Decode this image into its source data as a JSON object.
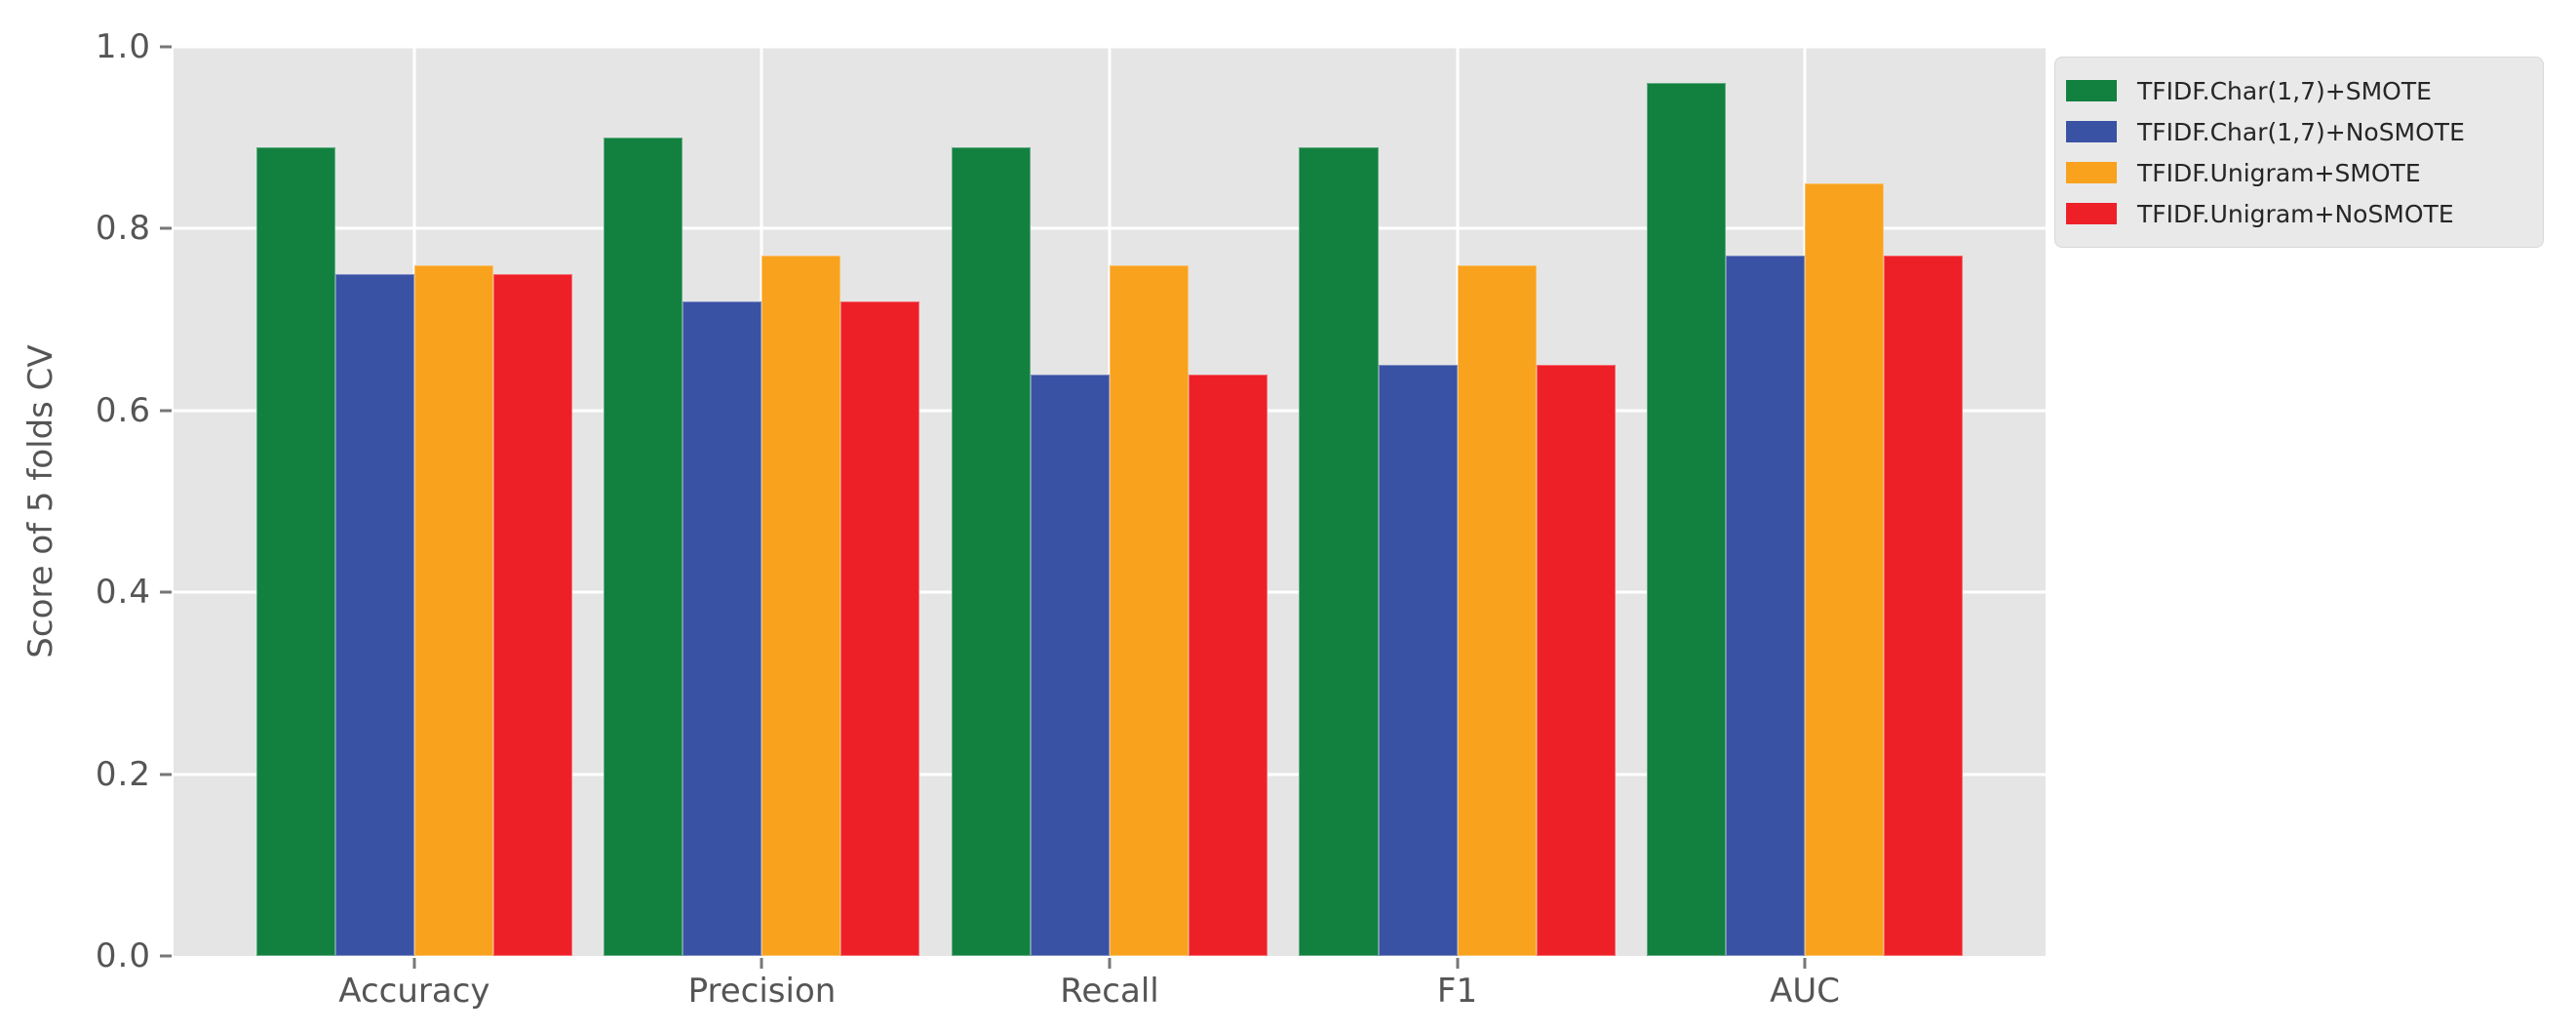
{
  "figure": {
    "background_color": "#ffffff",
    "plot_background_color": "#e5e5e5",
    "gridline_color": "#ffffff",
    "tick_text_color": "#555555",
    "legend_text_color": "#262626"
  },
  "chart_data": {
    "type": "bar",
    "title": "",
    "xlabel": "",
    "ylabel": "Score of 5 folds CV",
    "ylim": [
      0.0,
      1.0
    ],
    "yticks": [
      0.0,
      0.2,
      0.4,
      0.6,
      0.8,
      1.0
    ],
    "ytick_labels": [
      "0.0",
      "0.2",
      "0.4",
      "0.6",
      "0.8",
      "1.0"
    ],
    "grid": true,
    "legend_position": "upper right outside plot",
    "categories": [
      "Accuracy",
      "Precision",
      "Recall",
      "F1",
      "AUC"
    ],
    "series": [
      {
        "name": "TFIDF.Char(1,7)+SMOTE",
        "color": "#12813f",
        "values": [
          0.89,
          0.9,
          0.89,
          0.89,
          0.96
        ]
      },
      {
        "name": "TFIDF.Char(1,7)+NoSMOTE",
        "color": "#3a52a4",
        "values": [
          0.75,
          0.72,
          0.64,
          0.65,
          0.77
        ]
      },
      {
        "name": "TFIDF.Unigram+SMOTE",
        "color": "#f8a21e",
        "values": [
          0.76,
          0.77,
          0.76,
          0.76,
          0.85
        ]
      },
      {
        "name": "TFIDF.Unigram+NoSMOTE",
        "color": "#ee2027",
        "values": [
          0.75,
          0.72,
          0.64,
          0.65,
          0.77
        ]
      }
    ]
  }
}
